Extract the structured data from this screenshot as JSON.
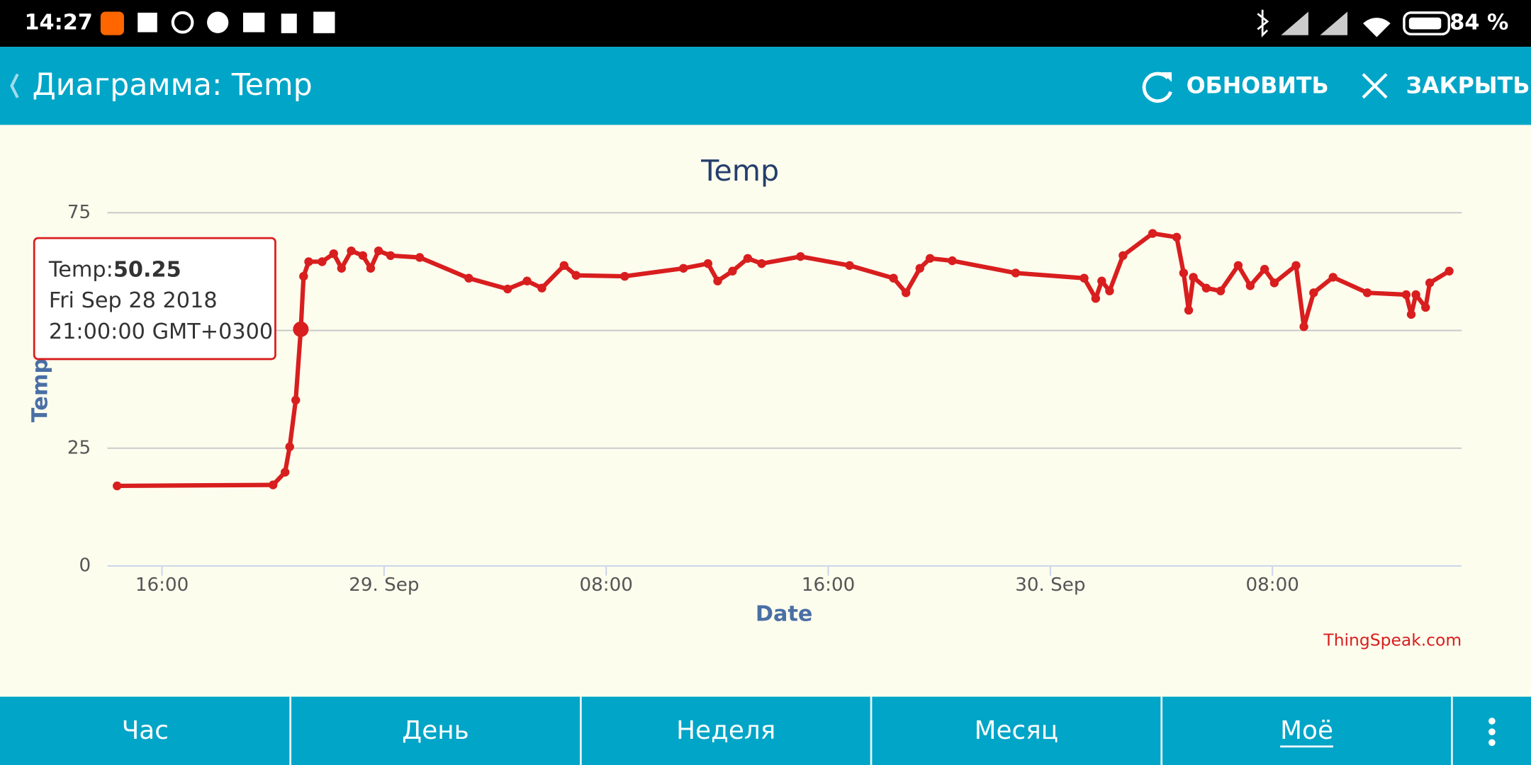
{
  "status_bar": {
    "time": "14:27",
    "battery": "84 %"
  },
  "app_bar": {
    "title": "Диаграмма: Temp",
    "refresh": "ОБНОВИТЬ",
    "close": "ЗАКРЫТЬ"
  },
  "chart_data": {
    "type": "line",
    "title": "Temp",
    "x_label": "Date",
    "y_label": "Temp",
    "credit": "ThingSpeak.com",
    "color": "#d81e1e",
    "grid": true,
    "xlim": [
      "2018-09-28T14:02",
      "2018-09-30T14:49"
    ],
    "xticks": [
      {
        "value": "2018-09-28T16:00",
        "label": "16:00"
      },
      {
        "value": "2018-09-29T00:00",
        "label": "29. Sep"
      },
      {
        "value": "2018-09-29T08:00",
        "label": "08:00"
      },
      {
        "value": "2018-09-29T16:00",
        "label": "16:00"
      },
      {
        "value": "2018-09-30T00:00",
        "label": "30. Sep"
      },
      {
        "value": "2018-09-30T08:00",
        "label": "08:00"
      }
    ],
    "ylim": [
      0,
      75
    ],
    "yticks": [
      0,
      25,
      50,
      75
    ],
    "x": [
      "2018-09-28T14:23",
      "2018-09-28T20:00",
      "2018-09-28T20:26",
      "2018-09-28T20:36",
      "2018-09-28T20:49",
      "2018-09-28T21:00",
      "2018-09-28T21:06",
      "2018-09-28T21:17",
      "2018-09-28T21:46",
      "2018-09-28T22:11",
      "2018-09-28T22:28",
      "2018-09-28T22:49",
      "2018-09-28T23:14",
      "2018-09-28T23:31",
      "2018-09-28T23:48",
      "2018-09-29T00:14",
      "2018-09-29T01:17",
      "2018-09-29T03:03",
      "2018-09-29T04:27",
      "2018-09-29T05:09",
      "2018-09-29T05:41",
      "2018-09-29T06:29",
      "2018-09-29T06:55",
      "2018-09-29T08:40",
      "2018-09-29T10:47",
      "2018-09-29T11:40",
      "2018-09-29T12:01",
      "2018-09-29T12:33",
      "2018-09-29T13:06",
      "2018-09-29T13:36",
      "2018-09-29T15:00",
      "2018-09-29T16:46",
      "2018-09-29T18:21",
      "2018-09-29T18:48",
      "2018-09-29T19:18",
      "2018-09-29T19:40",
      "2018-09-29T20:28",
      "2018-09-29T22:45",
      "2018-09-30T01:13",
      "2018-09-30T01:38",
      "2018-09-30T01:51",
      "2018-09-30T02:08",
      "2018-09-30T02:37",
      "2018-09-30T03:41",
      "2018-09-30T04:33",
      "2018-09-30T04:48",
      "2018-09-30T04:59",
      "2018-09-30T05:09",
      "2018-09-30T05:37",
      "2018-09-30T06:08",
      "2018-09-30T06:46",
      "2018-09-30T07:12",
      "2018-09-30T07:43",
      "2018-09-30T08:04",
      "2018-09-30T08:51",
      "2018-09-30T09:08",
      "2018-09-30T09:29",
      "2018-09-30T10:11",
      "2018-09-30T11:25",
      "2018-09-30T12:49",
      "2018-09-30T13:00",
      "2018-09-30T13:10",
      "2018-09-30T13:31",
      "2018-09-30T13:40",
      "2018-09-30T14:22"
    ],
    "values": [
      17.0,
      17.2,
      19.9,
      25.3,
      35.2,
      50.25,
      61.5,
      64.6,
      64.6,
      66.3,
      63.2,
      66.9,
      65.9,
      63.2,
      66.9,
      65.9,
      65.5,
      61.1,
      58.8,
      60.5,
      59.0,
      63.8,
      61.7,
      61.5,
      63.2,
      64.2,
      60.5,
      62.6,
      65.3,
      64.2,
      65.7,
      63.8,
      61.1,
      58.0,
      63.2,
      65.3,
      64.8,
      62.2,
      61.1,
      56.8,
      60.5,
      58.4,
      65.9,
      70.6,
      69.8,
      62.2,
      54.3,
      61.3,
      59.0,
      58.4,
      63.8,
      59.5,
      63.0,
      60.1,
      63.8,
      50.8,
      58.0,
      61.3,
      58.0,
      57.6,
      53.4,
      57.6,
      54.9,
      60.1,
      62.6
    ]
  },
  "tooltip": {
    "label": "Temp:",
    "date": "Fri Sep 28 2018",
    "time": "21:00:00 GMT+0300"
  },
  "tabs": [
    "Час",
    "День",
    "Неделя",
    "Месяц",
    "Моё"
  ]
}
